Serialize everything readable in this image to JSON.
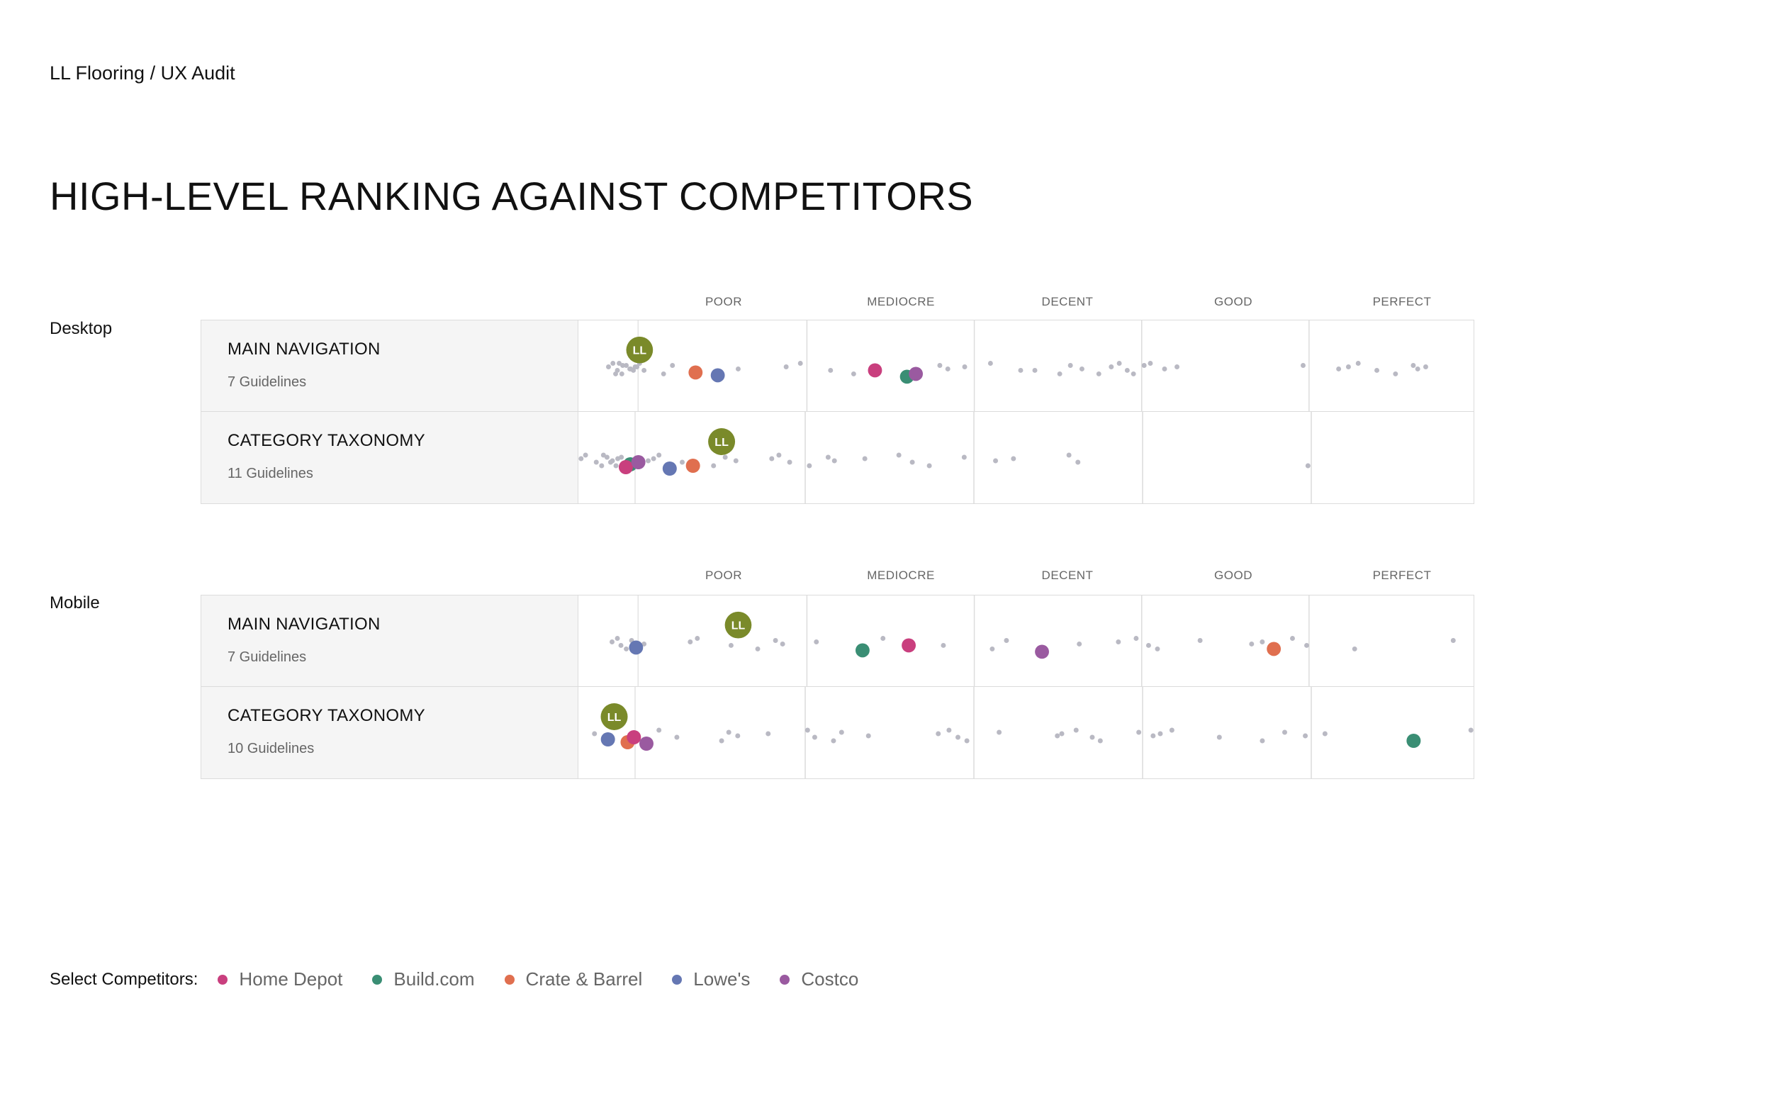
{
  "header": {
    "breadcrumb": "LL Flooring / UX Audit"
  },
  "page_title": "HIGH-LEVEL RANKING AGAINST COMPETITORS",
  "ll_label": "LL",
  "colors": {
    "ll": "#7a8a2a",
    "faint": "#b9b9c3",
    "Home Depot": "#c93f7e",
    "Build.com": "#3a8e74",
    "Crate & Barrel": "#e06f4f",
    "Lowe's": "#6577b3",
    "Costco": "#9a5aa0"
  },
  "legend": {
    "title": "Select Competitors:",
    "items": [
      "Home Depot",
      "Build.com",
      "Crate & Barrel",
      "Lowe's",
      "Costco"
    ]
  },
  "chart_data": [
    {
      "type": "scatter",
      "section": "Desktop",
      "x_categories": [
        "POOR",
        "MEDIOCRE",
        "DECENT",
        "GOOD",
        "PERFECT"
      ],
      "xlim": [
        0,
        100
      ],
      "rows": [
        {
          "title": "MAIN NAVIGATION",
          "subtitle": "7 Guidelines",
          "ll": 6.5,
          "competitors": {
            "Crate & Barrel": 12.8,
            "Lowe's": 15.3,
            "Home Depot": 33.0,
            "Build.com": 36.6,
            "Costco": 37.6
          },
          "others": [
            3.0,
            3.5,
            4.0,
            4.5,
            5.0,
            5.5,
            6.0,
            6.5,
            7.0,
            3.8,
            4.6,
            5.4,
            6.2,
            4.2,
            5.8,
            9.2,
            10.2,
            17.6,
            23.0,
            24.6,
            28.0,
            30.6,
            40.3,
            41.2,
            43.1,
            46.0,
            49.4,
            53.8,
            55.0,
            56.3,
            59.6,
            60.5,
            61.4,
            62.1,
            63.3,
            65.6,
            67.0,
            64.0,
            51.0,
            58.2,
            81.2,
            85.2,
            86.3,
            87.4,
            89.5,
            91.6,
            93.6,
            94.1,
            95.0
          ]
        },
        {
          "title": "CATEGORY TAXONOMY",
          "subtitle": "11 Guidelines",
          "ll": 16.0,
          "competitors": {
            "Build.com": 5.8,
            "Home Depot": 5.3,
            "Costco": 6.7,
            "Lowe's": 10.2,
            "Crate & Barrel": 12.8
          },
          "others": [
            0.3,
            0.8,
            2.0,
            2.6,
            3.2,
            3.8,
            4.4,
            2.8,
            3.6,
            4.2,
            4.8,
            7.8,
            8.4,
            9.0,
            11.6,
            15.1,
            16.4,
            17.6,
            21.6,
            22.4,
            23.6,
            25.8,
            27.9,
            28.6,
            32.0,
            35.8,
            37.3,
            39.2,
            43.1,
            46.6,
            48.6,
            54.8,
            55.8,
            81.5
          ]
        }
      ]
    },
    {
      "type": "scatter",
      "section": "Mobile",
      "x_categories": [
        "POOR",
        "MEDIOCRE",
        "DECENT",
        "GOOD",
        "PERFECT"
      ],
      "xlim": [
        0,
        100
      ],
      "rows": [
        {
          "title": "MAIN NAVIGATION",
          "subtitle": "7 Guidelines",
          "ll": 17.6,
          "competitors": {
            "Lowe's": 6.1,
            "Build.com": 31.6,
            "Home Depot": 36.8,
            "Costco": 51.8,
            "Crate & Barrel": 77.9
          },
          "others": [
            3.4,
            4.0,
            4.4,
            5.0,
            5.6,
            7.0,
            12.2,
            13.0,
            16.8,
            19.8,
            21.8,
            22.6,
            26.4,
            33.9,
            40.7,
            46.2,
            47.8,
            56.0,
            60.4,
            62.4,
            63.8,
            64.8,
            69.6,
            75.4,
            76.6,
            80.0,
            81.6,
            87.0,
            98.1
          ]
        },
        {
          "title": "CATEGORY TAXONOMY",
          "subtitle": "10 Guidelines",
          "ll": 4.0,
          "competitors": {
            "Lowe's": 3.3,
            "Crate & Barrel": 5.5,
            "Home Depot": 6.2,
            "Costco": 7.6,
            "Build.com": 93.3
          },
          "others": [
            1.8,
            9.0,
            11.0,
            16.0,
            16.8,
            17.8,
            21.2,
            25.6,
            26.4,
            28.5,
            29.4,
            32.4,
            40.2,
            41.4,
            42.4,
            43.4,
            47.0,
            53.5,
            54.0,
            55.6,
            57.4,
            58.3,
            62.6,
            64.2,
            65.0,
            66.3,
            71.6,
            76.4,
            78.9,
            81.2,
            83.4,
            99.7
          ]
        }
      ]
    }
  ]
}
